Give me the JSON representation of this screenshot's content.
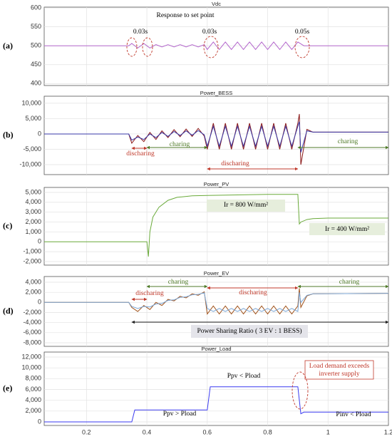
{
  "chart_data": [
    {
      "type": "line",
      "title": "Vdc",
      "panel_label": "(a)",
      "xlim": [
        0.06,
        1.2
      ],
      "ylim": [
        395,
        602
      ],
      "yticks": [
        400,
        450,
        500,
        550,
        600
      ],
      "grid": true,
      "annotations": [
        "Response to set point",
        "0.03s",
        "0.03s",
        "0.05s"
      ],
      "x": [
        0.06,
        0.34,
        0.35,
        0.37,
        0.39,
        0.41,
        0.43,
        0.45,
        0.47,
        0.49,
        0.51,
        0.53,
        0.55,
        0.57,
        0.59,
        0.6,
        0.62,
        0.64,
        0.66,
        0.68,
        0.7,
        0.72,
        0.74,
        0.76,
        0.78,
        0.8,
        0.82,
        0.84,
        0.86,
        0.88,
        0.9,
        0.92,
        1.2
      ],
      "series": [
        {
          "color": "#b366cc",
          "values": [
            500,
            500,
            506,
            494,
            506,
            494,
            503,
            497,
            503,
            497,
            503,
            497,
            503,
            497,
            503,
            490,
            510,
            490,
            510,
            490,
            510,
            490,
            510,
            490,
            510,
            490,
            510,
            490,
            510,
            490,
            510,
            500,
            500
          ]
        }
      ]
    },
    {
      "type": "line",
      "title": "Power_BESS",
      "panel_label": "(b)",
      "xlim": [
        0.06,
        1.2
      ],
      "ylim": [
        -13250,
        12300
      ],
      "yticks": [
        {
          "value": -10000,
          "label": "-10,000"
        },
        {
          "value": -5000,
          "label": "-5,000"
        },
        0,
        {
          "value": 5000,
          "label": "5,000"
        },
        {
          "value": 10000,
          "label": "10,000"
        }
      ],
      "grid": true,
      "annotations": [
        "discharing",
        "charing",
        "discharing",
        "charing"
      ],
      "x": [
        0.06,
        0.34,
        0.35,
        0.37,
        0.39,
        0.41,
        0.43,
        0.45,
        0.47,
        0.49,
        0.51,
        0.53,
        0.55,
        0.57,
        0.59,
        0.6,
        0.62,
        0.64,
        0.66,
        0.68,
        0.7,
        0.72,
        0.74,
        0.76,
        0.78,
        0.8,
        0.82,
        0.84,
        0.86,
        0.88,
        0.9,
        0.905,
        0.91,
        0.93,
        0.95,
        1.2
      ],
      "series": [
        {
          "color": "#8b1a1a",
          "values": [
            0,
            0,
            -3000,
            -500,
            -2500,
            500,
            -1800,
            1000,
            -1200,
            1400,
            -900,
            1600,
            -800,
            1800,
            -700,
            -5000,
            3500,
            -5000,
            3500,
            -5000,
            3500,
            -5000,
            3500,
            -5000,
            3500,
            -5000,
            3500,
            -5000,
            3500,
            -5000,
            3500,
            6500,
            -10000,
            1500,
            600,
            600
          ]
        },
        {
          "color": "#3a3aa8",
          "values": [
            0,
            0,
            -2000,
            -1000,
            -1800,
            0,
            -1200,
            500,
            -800,
            800,
            -500,
            1000,
            -400,
            1100,
            -300,
            -4000,
            2500,
            -4000,
            2500,
            -4000,
            2500,
            -4000,
            2500,
            -4000,
            2500,
            -4000,
            2500,
            -4000,
            2500,
            -4000,
            2500,
            4000,
            -6000,
            1000,
            600,
            600
          ]
        }
      ]
    },
    {
      "type": "line",
      "title": "Power_PV",
      "panel_label": "(c)",
      "xlim": [
        0.06,
        1.2
      ],
      "ylim": [
        -2360,
        5505
      ],
      "yticks": [
        {
          "value": -2000,
          "label": "-2,000"
        },
        {
          "value": -1000,
          "label": "-1,000"
        },
        0,
        {
          "value": 1000,
          "label": "1,000"
        },
        {
          "value": 2000,
          "label": "2,000"
        },
        {
          "value": 3000,
          "label": "3,000"
        },
        {
          "value": 4000,
          "label": "4,000"
        },
        {
          "value": 5000,
          "label": "5,000"
        }
      ],
      "grid": true,
      "annotations": [
        "Ir = 800 W/mm²",
        "Ir = 400 W/mm²"
      ],
      "x": [
        0.06,
        0.4,
        0.405,
        0.41,
        0.42,
        0.44,
        0.47,
        0.5,
        0.55,
        0.6,
        0.7,
        0.8,
        0.9,
        0.905,
        0.91,
        0.93,
        0.95,
        1.0,
        1.2
      ],
      "series": [
        {
          "color": "#6aaa3a",
          "values": [
            0,
            0,
            -1500,
            1000,
            2500,
            3500,
            4200,
            4500,
            4650,
            4700,
            4750,
            4800,
            4800,
            1800,
            2000,
            2250,
            2350,
            2400,
            2400
          ]
        }
      ]
    },
    {
      "type": "line",
      "title": "Power_EV",
      "panel_label": "(d)",
      "xlim": [
        0.06,
        1.2
      ],
      "ylim": [
        -8706,
        5130
      ],
      "yticks": [
        {
          "value": -8000,
          "label": "-8,000"
        },
        {
          "value": -6000,
          "label": "-6,000"
        },
        {
          "value": -4000,
          "label": "-4,000"
        },
        {
          "value": -2000,
          "label": "-2,000"
        },
        0,
        {
          "value": 2000,
          "label": "2,000"
        },
        {
          "value": 4000,
          "label": "4,000"
        }
      ],
      "grid": true,
      "annotations": [
        "discharing",
        "charing",
        "discharing",
        "charing",
        "Power Sharing Ratio ( 3 EV : 1 BESS)"
      ],
      "x": [
        0.06,
        0.34,
        0.35,
        0.37,
        0.39,
        0.41,
        0.43,
        0.45,
        0.47,
        0.49,
        0.51,
        0.53,
        0.55,
        0.57,
        0.59,
        0.6,
        0.62,
        0.64,
        0.66,
        0.68,
        0.7,
        0.72,
        0.74,
        0.76,
        0.78,
        0.8,
        0.82,
        0.84,
        0.86,
        0.88,
        0.9,
        0.905,
        0.91,
        0.93,
        0.95,
        1.2
      ],
      "series": [
        {
          "color": "#a0521a",
          "values": [
            0,
            0,
            -1000,
            -1800,
            -600,
            -1400,
            0,
            -600,
            600,
            300,
            1200,
            900,
            1700,
            1400,
            2100,
            -2300,
            -700,
            -2300,
            -700,
            -2300,
            -700,
            -2300,
            -700,
            -2300,
            -700,
            -2300,
            -700,
            -2300,
            -700,
            -2300,
            -700,
            2800,
            -1000,
            1300,
            1700,
            1800
          ]
        },
        {
          "color": "#7aa6d6",
          "values": [
            0,
            0,
            -800,
            -1200,
            -800,
            -900,
            -300,
            -200,
            400,
            500,
            1000,
            1100,
            1500,
            1600,
            1900,
            -1200,
            -1800,
            -1200,
            -1800,
            -1200,
            -1800,
            -1200,
            -1800,
            -1200,
            -1800,
            -1200,
            -1800,
            -1200,
            -1800,
            -1200,
            -1800,
            2000,
            0,
            1400,
            1700,
            1800
          ]
        }
      ]
    },
    {
      "type": "line",
      "title": "Power_Load",
      "panel_label": "(e)",
      "xlim": [
        0.06,
        1.2
      ],
      "ylim": [
        -660,
        12923
      ],
      "yticks": [
        0,
        {
          "value": 2000,
          "label": "2,000"
        },
        {
          "value": 4000,
          "label": "4,000"
        },
        {
          "value": 6000,
          "label": "6,000"
        },
        {
          "value": 8000,
          "label": "8,000"
        },
        {
          "value": 10000,
          "label": "10,000"
        },
        {
          "value": 12000,
          "label": "12,000"
        }
      ],
      "grid": true,
      "xticks": [
        0.2,
        0.4,
        0.6,
        0.8,
        1,
        1.2
      ],
      "annotations": [
        "Ppv > Pload",
        "Ppv < Pload",
        "Pinv < Pload",
        "Load demand exceeds",
        "inverter supply"
      ],
      "x": [
        0.06,
        0.35,
        0.36,
        0.6,
        0.61,
        0.9,
        0.91,
        0.92,
        1.2
      ],
      "series": [
        {
          "color": "#3a3af0",
          "values": [
            0,
            0,
            2200,
            2200,
            6500,
            6500,
            1500,
            1800,
            1800
          ]
        }
      ]
    }
  ]
}
